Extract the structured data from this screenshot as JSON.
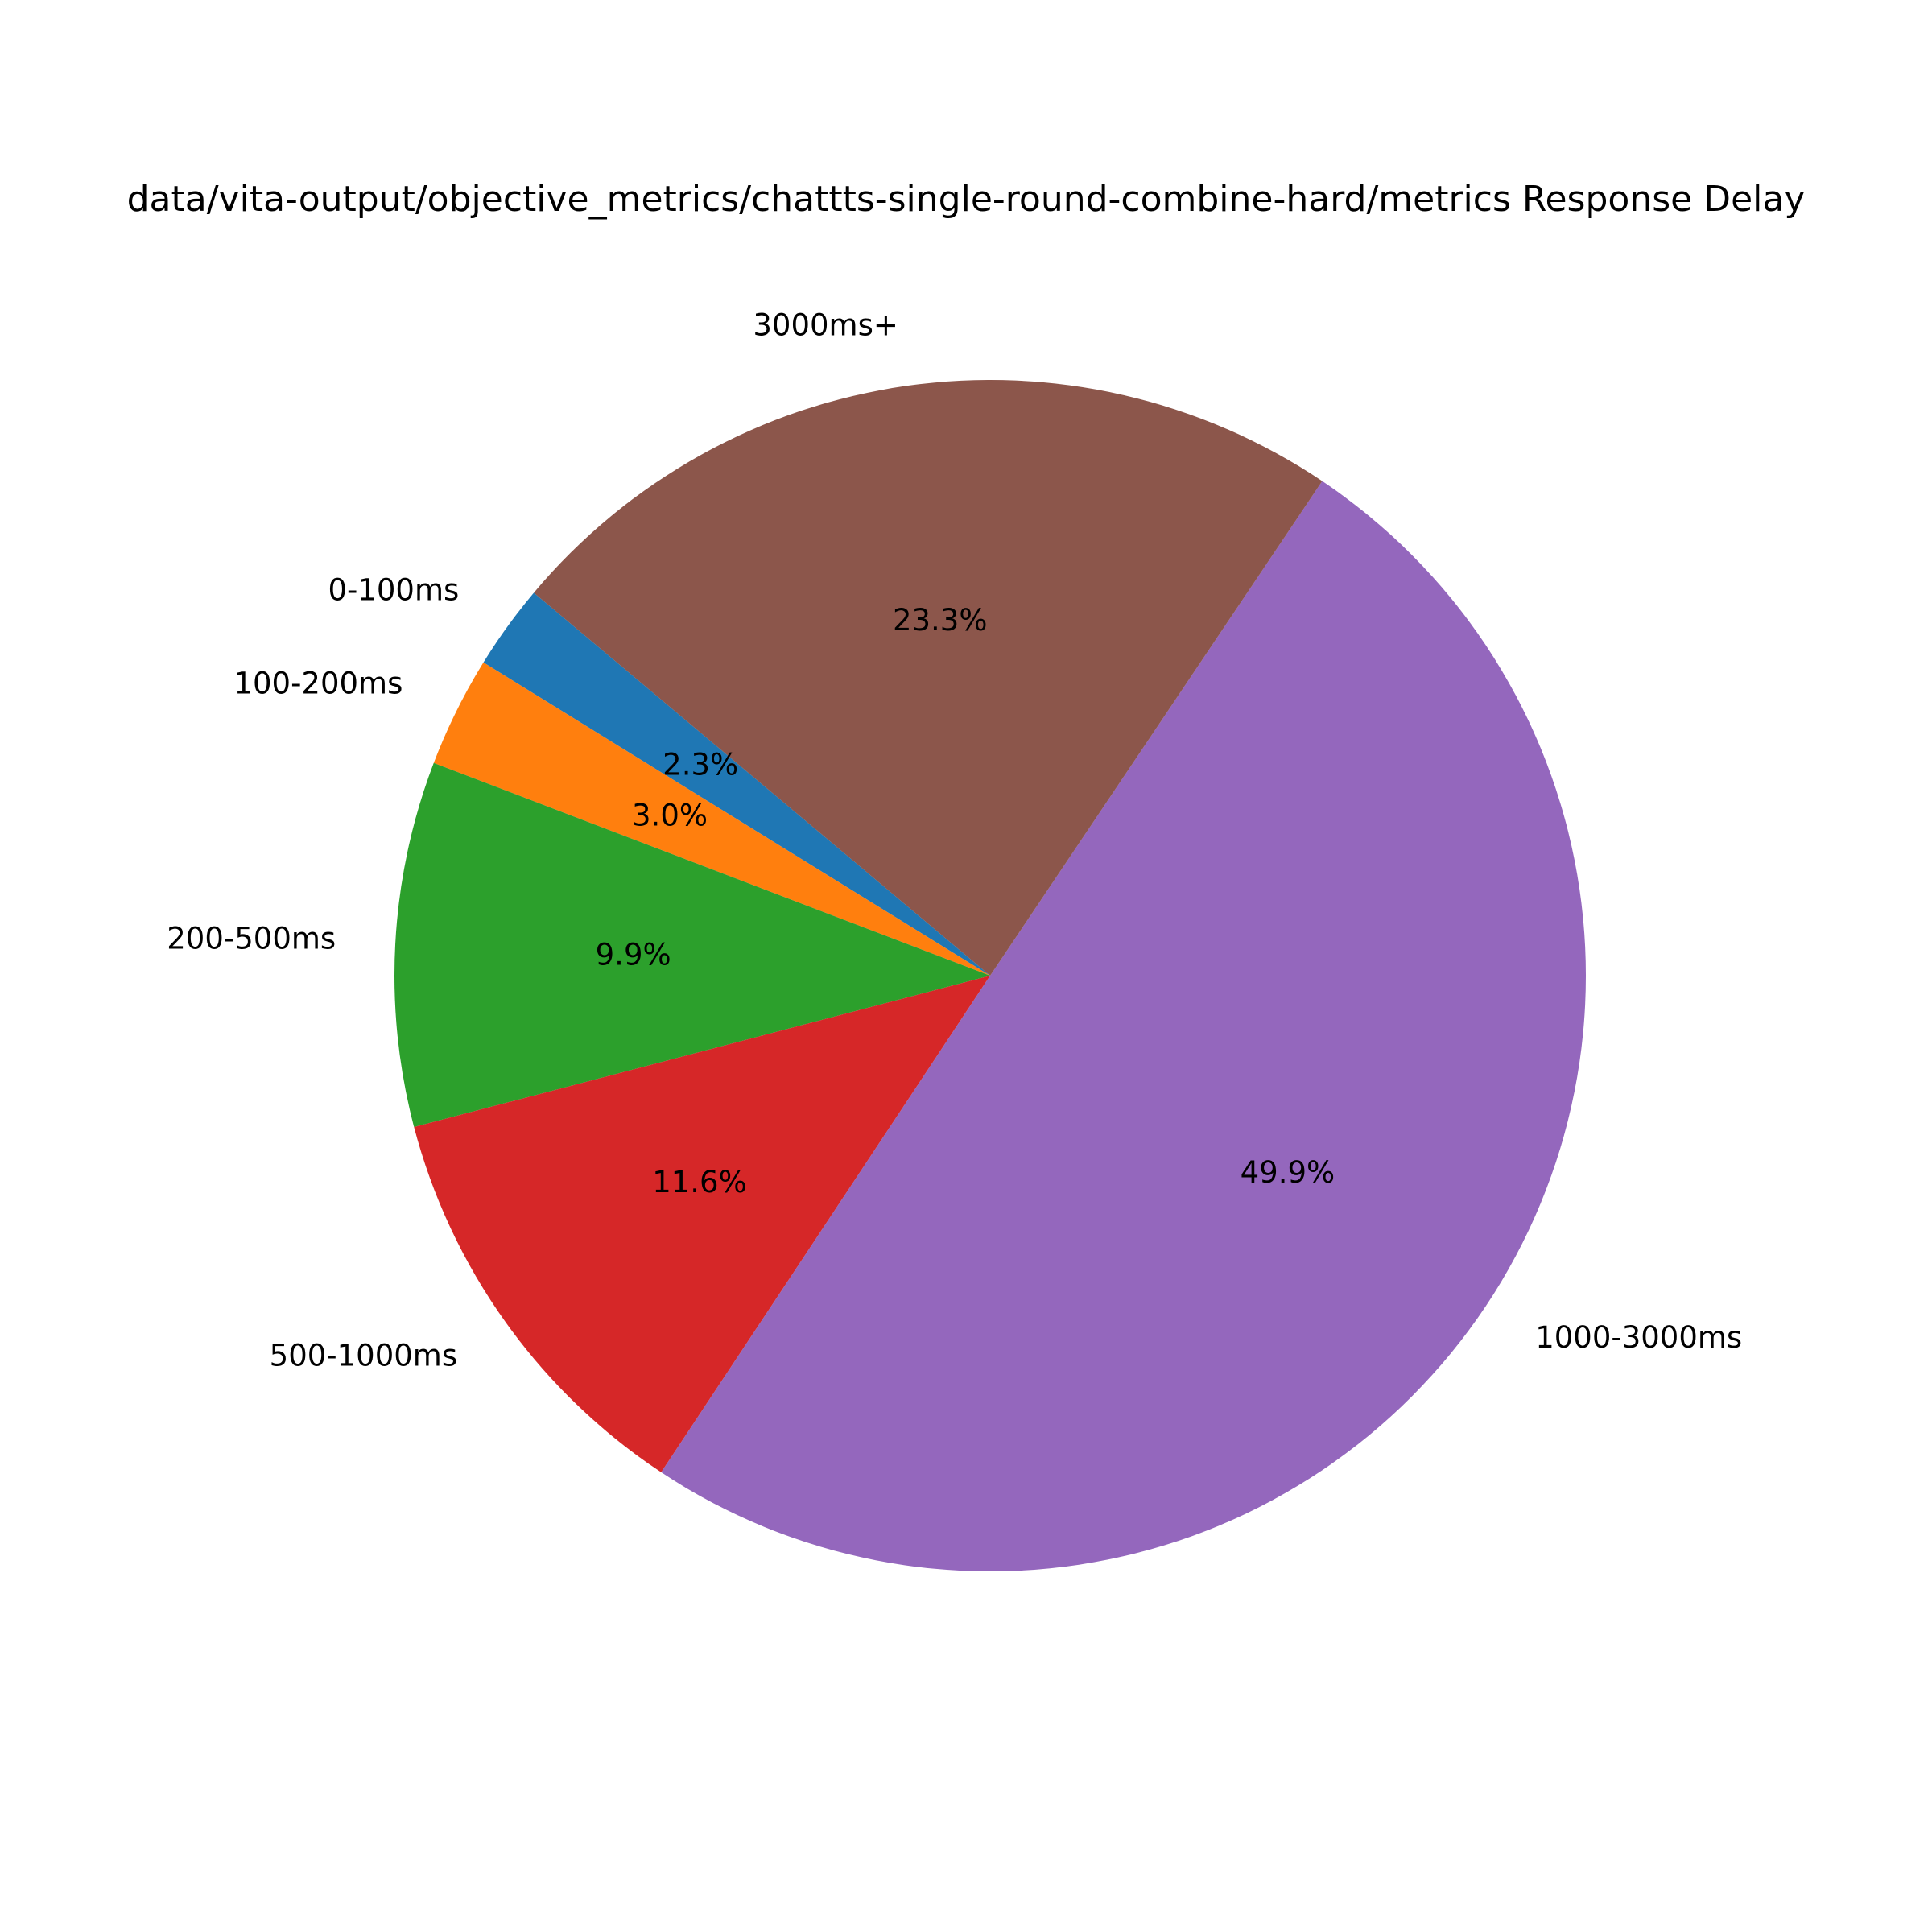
{
  "chart_data": {
    "type": "pie",
    "title": "data/vita-output/objective_metrics/chattts-single-round-combine-hard/metrics Response Delay",
    "start_angle_deg": 140,
    "direction": "counterclockwise",
    "slices": [
      {
        "label": "0-100ms",
        "value": 2.3,
        "pct_label": "2.3%",
        "color": "#1f77b4"
      },
      {
        "label": "100-200ms",
        "value": 3.0,
        "pct_label": "3.0%",
        "color": "#ff7f0e"
      },
      {
        "label": "200-500ms",
        "value": 9.9,
        "pct_label": "9.9%",
        "color": "#2ca02c"
      },
      {
        "label": "500-1000ms",
        "value": 11.6,
        "pct_label": "11.6%",
        "color": "#d62728"
      },
      {
        "label": "1000-3000ms",
        "value": 49.9,
        "pct_label": "49.9%",
        "color": "#9467bd"
      },
      {
        "label": "3000ms+",
        "value": 23.3,
        "pct_label": "23.3%",
        "color": "#8c564b"
      }
    ]
  }
}
